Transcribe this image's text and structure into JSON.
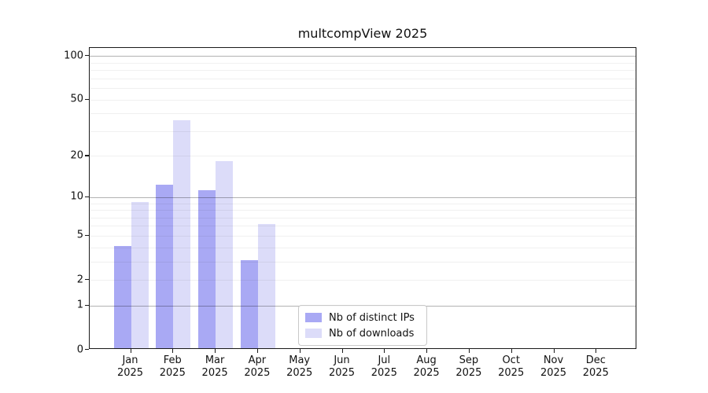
{
  "chart": {
    "title": "multcompView 2025",
    "year_label": "2025",
    "months": [
      "Jan",
      "Feb",
      "Mar",
      "Apr",
      "May",
      "Jun",
      "Jul",
      "Aug",
      "Sep",
      "Oct",
      "Nov",
      "Dec"
    ]
  },
  "chart_data": {
    "type": "bar",
    "title": "multcompView 2025",
    "categories": [
      "Jan 2025",
      "Feb 2025",
      "Mar 2025",
      "Apr 2025",
      "May 2025",
      "Jun 2025",
      "Jul 2025",
      "Aug 2025",
      "Sep 2025",
      "Oct 2025",
      "Nov 2025",
      "Dec 2025"
    ],
    "series": [
      {
        "name": "Nb of distinct IPs",
        "color": "#a9a9f4",
        "values": [
          4,
          12,
          11,
          3,
          0,
          0,
          0,
          0,
          0,
          0,
          0,
          0
        ]
      },
      {
        "name": "Nb of downloads",
        "color": "#dcdcf9",
        "values": [
          9,
          35,
          18,
          6,
          0,
          0,
          0,
          0,
          0,
          0,
          0,
          0
        ]
      }
    ],
    "xlabel": "",
    "ylabel": "",
    "yscale": "log1p",
    "ylim": [
      0,
      114
    ],
    "yticks": [
      0,
      1,
      2,
      5,
      10,
      20,
      50,
      100
    ],
    "grid_major_at": [
      1,
      10,
      100
    ],
    "grid_minor_at": [
      2,
      3,
      4,
      5,
      6,
      7,
      8,
      9,
      20,
      30,
      40,
      50,
      60,
      70,
      80,
      90
    ],
    "legend_position": "lower center",
    "colors": {
      "frame": "#1a1a1a",
      "major_grid": "#b3b3b3",
      "minor_grid": "#efefef",
      "background": "#ffffff"
    }
  }
}
